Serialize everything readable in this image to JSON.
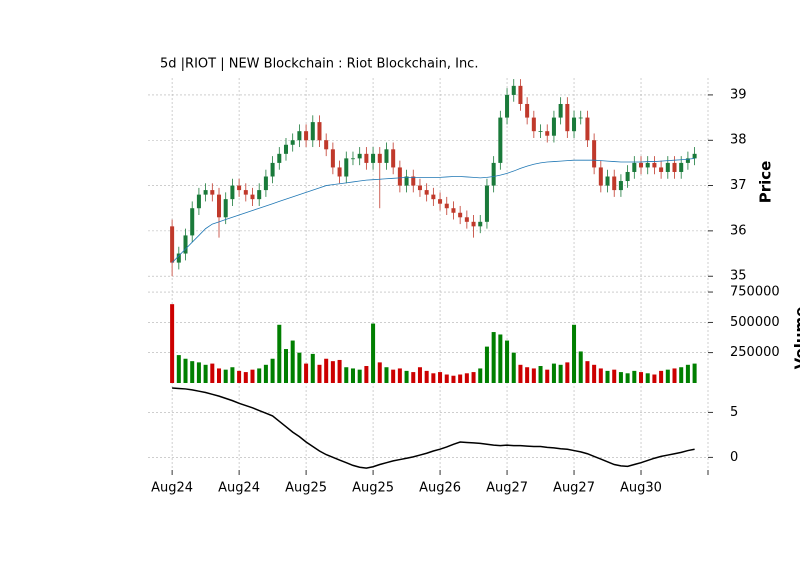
{
  "chart_data": [
    {
      "type": "candlestick",
      "title": "5d |RIOT | NEW Blockchain : Riot Blockchain, Inc.",
      "ylabel": "Price",
      "xlim": [
        -3.6,
        80
      ],
      "ylim": [
        34.85,
        39.55
      ],
      "yticks": [
        35,
        36,
        37,
        38,
        39
      ],
      "grid": true,
      "up_color": "#1a7a3a",
      "down_color": "#c0392b",
      "open": [
        36.1,
        35.3,
        35.5,
        35.9,
        36.5,
        36.8,
        36.9,
        36.8,
        36.3,
        36.7,
        37.0,
        36.9,
        36.8,
        36.7,
        36.9,
        37.2,
        37.5,
        37.7,
        37.9,
        38.0,
        38.2,
        38.0,
        38.4,
        38.0,
        37.8,
        37.4,
        37.2,
        37.6,
        37.6,
        37.7,
        37.5,
        37.7,
        37.5,
        37.8,
        37.4,
        37.0,
        37.2,
        37.0,
        36.9,
        36.8,
        36.7,
        36.6,
        36.5,
        36.4,
        36.3,
        36.2,
        36.1,
        36.2,
        37.0,
        37.5,
        38.5,
        39.0,
        39.2,
        38.8,
        38.5,
        38.2,
        38.2,
        38.1,
        38.5,
        38.8,
        38.2,
        38.5,
        38.5,
        38.0,
        37.4,
        37.0,
        37.2,
        36.9,
        37.1,
        37.3,
        37.5,
        37.4,
        37.5,
        37.4,
        37.3,
        37.5,
        37.3,
        37.5,
        37.6
      ],
      "high": [
        36.25,
        35.65,
        36.05,
        36.65,
        36.95,
        37.05,
        37.05,
        36.95,
        36.85,
        37.15,
        37.15,
        37.05,
        36.95,
        37.05,
        37.35,
        37.65,
        37.85,
        38.05,
        38.15,
        38.35,
        38.35,
        38.55,
        38.55,
        38.15,
        37.95,
        37.55,
        37.75,
        37.75,
        37.85,
        37.85,
        37.85,
        37.85,
        37.95,
        37.95,
        37.55,
        37.35,
        37.35,
        37.15,
        37.05,
        36.95,
        36.85,
        36.75,
        36.65,
        36.55,
        36.45,
        36.35,
        36.35,
        37.15,
        37.65,
        38.65,
        39.15,
        39.35,
        39.35,
        38.95,
        38.65,
        38.35,
        38.35,
        38.65,
        38.95,
        38.95,
        38.65,
        38.65,
        38.65,
        38.15,
        37.55,
        37.35,
        37.35,
        37.25,
        37.45,
        37.65,
        37.65,
        37.65,
        37.65,
        37.55,
        37.65,
        37.65,
        37.65,
        37.75,
        37.85
      ],
      "low": [
        35.0,
        35.15,
        35.35,
        35.75,
        36.35,
        36.65,
        36.65,
        35.85,
        36.15,
        36.55,
        36.75,
        36.65,
        36.55,
        36.55,
        36.75,
        37.05,
        37.35,
        37.55,
        37.75,
        37.85,
        37.85,
        37.85,
        37.85,
        37.65,
        37.25,
        37.05,
        37.05,
        37.45,
        37.45,
        37.35,
        37.35,
        36.5,
        37.35,
        37.25,
        36.85,
        36.85,
        36.85,
        36.75,
        36.65,
        36.55,
        36.45,
        36.35,
        36.25,
        36.15,
        36.05,
        35.85,
        35.95,
        36.05,
        36.85,
        37.35,
        38.35,
        38.85,
        38.65,
        38.35,
        38.05,
        38.05,
        37.95,
        37.95,
        38.35,
        38.05,
        38.05,
        38.35,
        37.85,
        37.25,
        36.85,
        36.85,
        36.75,
        36.75,
        36.95,
        37.15,
        37.25,
        37.25,
        37.25,
        37.15,
        37.15,
        37.15,
        37.15,
        37.35,
        37.45
      ],
      "close": [
        35.3,
        35.5,
        35.9,
        36.5,
        36.8,
        36.9,
        36.8,
        36.3,
        36.7,
        37.0,
        36.9,
        36.8,
        36.7,
        36.9,
        37.2,
        37.5,
        37.7,
        37.9,
        38.0,
        38.2,
        38.0,
        38.4,
        38.0,
        37.8,
        37.4,
        37.2,
        37.6,
        37.6,
        37.7,
        37.5,
        37.7,
        37.5,
        37.8,
        37.4,
        37.0,
        37.2,
        37.0,
        36.9,
        36.8,
        36.7,
        36.6,
        36.5,
        36.4,
        36.3,
        36.2,
        36.1,
        36.2,
        37.0,
        37.5,
        38.5,
        39.0,
        39.2,
        38.8,
        38.5,
        38.2,
        38.2,
        38.1,
        38.5,
        38.8,
        38.2,
        38.5,
        38.5,
        38.0,
        37.4,
        37.0,
        37.2,
        36.9,
        37.1,
        37.3,
        37.5,
        37.4,
        37.5,
        37.4,
        37.3,
        37.5,
        37.3,
        37.5,
        37.6,
        37.7
      ],
      "series": [
        {
          "color": "#1f77b4",
          "values": [
            35.3,
            35.45,
            35.6,
            35.75,
            35.9,
            36.05,
            36.15,
            36.2,
            36.25,
            36.3,
            36.35,
            36.4,
            36.45,
            36.5,
            36.55,
            36.6,
            36.65,
            36.7,
            36.75,
            36.8,
            36.85,
            36.9,
            36.95,
            37.0,
            37.02,
            37.04,
            37.06,
            37.08,
            37.1,
            37.12,
            37.13,
            37.14,
            37.15,
            37.16,
            37.17,
            37.18,
            37.18,
            37.18,
            37.18,
            37.18,
            37.18,
            37.19,
            37.2,
            37.2,
            37.19,
            37.18,
            37.17,
            37.18,
            37.2,
            37.23,
            37.27,
            37.32,
            37.38,
            37.43,
            37.47,
            37.5,
            37.52,
            37.53,
            37.54,
            37.55,
            37.56,
            37.56,
            37.56,
            37.56,
            37.55,
            37.54,
            37.53,
            37.52,
            37.52,
            37.52,
            37.52,
            37.53,
            37.53,
            37.54,
            37.55,
            37.56,
            37.57,
            37.58,
            37.6
          ]
        }
      ]
    },
    {
      "type": "bar",
      "ylabel": "Volume",
      "xlim": [
        -3.6,
        80
      ],
      "ylim": [
        0,
        775000
      ],
      "yticks": [
        250000,
        500000,
        750000
      ],
      "grid": true,
      "up_color": "#007f00",
      "down_color": "#cc0000",
      "values": [
        650000,
        230000,
        200000,
        180000,
        170000,
        150000,
        160000,
        120000,
        110000,
        130000,
        100000,
        90000,
        110000,
        120000,
        150000,
        200000,
        480000,
        280000,
        350000,
        250000,
        160000,
        240000,
        150000,
        200000,
        180000,
        190000,
        130000,
        120000,
        110000,
        140000,
        490000,
        170000,
        130000,
        110000,
        120000,
        100000,
        90000,
        130000,
        100000,
        80000,
        90000,
        70000,
        60000,
        70000,
        80000,
        90000,
        120000,
        300000,
        420000,
        400000,
        350000,
        250000,
        150000,
        130000,
        120000,
        140000,
        110000,
        160000,
        150000,
        170000,
        480000,
        260000,
        180000,
        150000,
        120000,
        100000,
        110000,
        90000,
        80000,
        100000,
        90000,
        80000,
        70000,
        100000,
        110000,
        120000,
        130000,
        150000,
        160000
      ]
    },
    {
      "type": "line",
      "xlim": [
        -3.6,
        80
      ],
      "ylim": [
        -1.41,
        8.26
      ],
      "yticks": [
        0,
        5
      ],
      "grid": true,
      "color": "#000000",
      "xticks": [
        {
          "value": 0,
          "label": "Aug24"
        },
        {
          "value": 10,
          "label": "Aug24"
        },
        {
          "value": 20,
          "label": "Aug25"
        },
        {
          "value": 30,
          "label": "Aug25"
        },
        {
          "value": 40,
          "label": "Aug26"
        },
        {
          "value": 50,
          "label": "Aug27"
        },
        {
          "value": 60,
          "label": "Aug27"
        },
        {
          "value": 70,
          "label": "Aug30"
        },
        {
          "value": 80,
          "label": null
        }
      ],
      "values": [
        7.7,
        7.65,
        7.6,
        7.5,
        7.35,
        7.2,
        7.0,
        6.8,
        6.55,
        6.3,
        6.0,
        5.75,
        5.5,
        5.2,
        4.9,
        4.6,
        4.0,
        3.4,
        2.8,
        2.3,
        1.7,
        1.2,
        0.7,
        0.3,
        0.0,
        -0.3,
        -0.6,
        -0.9,
        -1.1,
        -1.2,
        -1.05,
        -0.8,
        -0.6,
        -0.4,
        -0.25,
        -0.1,
        0.05,
        0.25,
        0.45,
        0.7,
        0.9,
        1.15,
        1.45,
        1.7,
        1.65,
        1.6,
        1.55,
        1.45,
        1.35,
        1.3,
        1.35,
        1.3,
        1.3,
        1.25,
        1.2,
        1.2,
        1.1,
        1.05,
        0.95,
        0.9,
        0.75,
        0.6,
        0.4,
        0.1,
        -0.2,
        -0.5,
        -0.8,
        -0.95,
        -1.0,
        -0.8,
        -0.6,
        -0.35,
        -0.1,
        0.1,
        0.25,
        0.4,
        0.55,
        0.75,
        0.9
      ]
    }
  ]
}
